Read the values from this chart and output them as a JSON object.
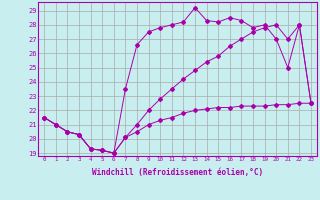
{
  "xlabel": "Windchill (Refroidissement éolien,°C)",
  "background_color": "#c8eef0",
  "line_color": "#aa00aa",
  "grid_color": "#aaaaaa",
  "ylim": [
    18.8,
    29.6
  ],
  "xlim": [
    -0.5,
    23.5
  ],
  "yticks": [
    19,
    20,
    21,
    22,
    23,
    24,
    25,
    26,
    27,
    28,
    29
  ],
  "xticks": [
    0,
    1,
    2,
    3,
    4,
    5,
    6,
    7,
    8,
    9,
    10,
    11,
    12,
    13,
    14,
    15,
    16,
    17,
    18,
    19,
    20,
    21,
    22,
    23
  ],
  "series": [
    {
      "x": [
        0,
        1,
        2,
        3,
        4,
        5,
        6,
        7,
        8,
        9,
        10,
        11,
        12,
        13,
        14,
        15,
        16,
        17,
        18,
        19,
        20,
        21,
        22,
        23
      ],
      "y": [
        21.5,
        21.0,
        20.5,
        20.3,
        19.3,
        19.2,
        19.0,
        23.5,
        26.6,
        27.5,
        27.8,
        28.0,
        28.2,
        29.2,
        28.3,
        28.2,
        28.5,
        28.3,
        27.8,
        28.0,
        27.0,
        25.0,
        28.0,
        22.5
      ]
    },
    {
      "x": [
        0,
        1,
        2,
        3,
        4,
        5,
        6,
        7,
        8,
        9,
        10,
        11,
        12,
        13,
        14,
        15,
        16,
        17,
        18,
        19,
        20,
        21,
        22,
        23
      ],
      "y": [
        21.5,
        21.0,
        20.5,
        20.3,
        19.3,
        19.2,
        19.0,
        20.1,
        21.0,
        22.0,
        22.8,
        23.5,
        24.2,
        24.8,
        25.4,
        25.8,
        26.5,
        27.0,
        27.5,
        27.8,
        28.0,
        27.0,
        28.0,
        22.5
      ]
    },
    {
      "x": [
        0,
        1,
        2,
        3,
        4,
        5,
        6,
        7,
        8,
        9,
        10,
        11,
        12,
        13,
        14,
        15,
        16,
        17,
        18,
        19,
        20,
        21,
        22,
        23
      ],
      "y": [
        21.5,
        21.0,
        20.5,
        20.3,
        19.3,
        19.2,
        19.0,
        20.1,
        20.5,
        21.0,
        21.3,
        21.5,
        21.8,
        22.0,
        22.1,
        22.2,
        22.2,
        22.3,
        22.3,
        22.3,
        22.4,
        22.4,
        22.5,
        22.5
      ]
    }
  ]
}
